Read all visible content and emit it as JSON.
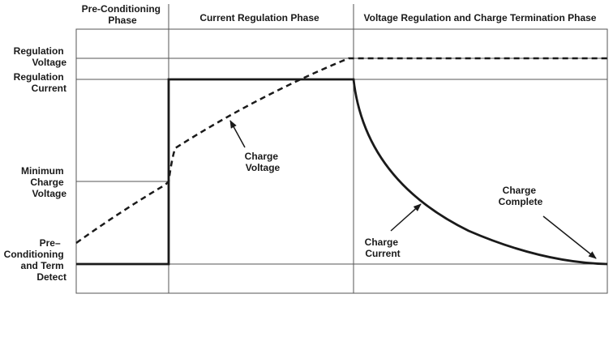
{
  "phases": [
    {
      "line1": "Pre-Conditioning",
      "line2": "Phase"
    },
    {
      "line1": "Current Regulation Phase",
      "line2": ""
    },
    {
      "line1": "Voltage Regulation and Charge Termination Phase",
      "line2": ""
    }
  ],
  "levels": {
    "regulation_voltage": {
      "line1": "Regulation",
      "line2": "Voltage",
      "line3": "",
      "line4": ""
    },
    "regulation_current": {
      "line1": "Regulation",
      "line2": "Current",
      "line3": "",
      "line4": ""
    },
    "minimum_charge_voltage": {
      "line1": "Minimum",
      "line2": "Charge",
      "line3": "Voltage",
      "line4": ""
    },
    "preconditioning_term_detect": {
      "line1": "Pre–",
      "line2": "Conditioning",
      "line3": "and Term",
      "line4": "Detect"
    }
  },
  "curve_labels": {
    "charge_voltage": {
      "line1": "Charge",
      "line2": "Voltage"
    },
    "charge_current": {
      "line1": "Charge",
      "line2": "Current"
    },
    "charge_complete": {
      "line1": "Charge",
      "line2": "Complete"
    }
  },
  "colors": {
    "line": "#1a1a1a",
    "grid": "#555555",
    "background": "#ffffff"
  }
}
